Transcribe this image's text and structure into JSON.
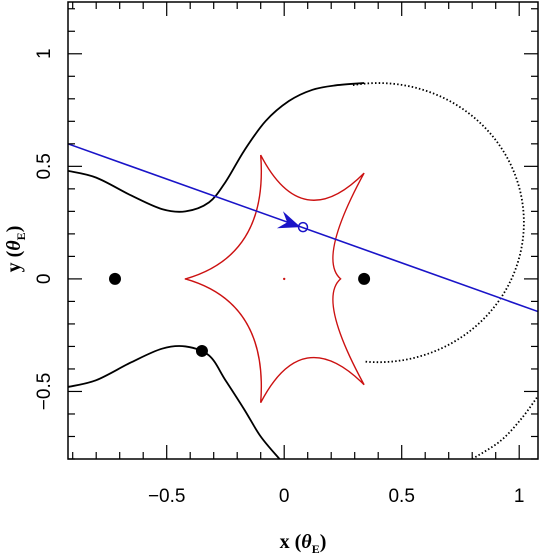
{
  "chart_data": {
    "type": "line",
    "xlabel": {
      "main": "x (",
      "theta": "θ",
      "sub": "E",
      "close": ")"
    },
    "ylabel": {
      "main": "y (",
      "theta": "θ",
      "sub": "E",
      "close": ")"
    },
    "xlim": [
      -0.92,
      1.08
    ],
    "ylim": [
      -0.8,
      1.23
    ],
    "xticks_major": [
      -0.5,
      0,
      0.5,
      1
    ],
    "xtick_labels": [
      "−0.5",
      "0",
      "0.5",
      "1"
    ],
    "yticks_major": [
      -0.5,
      0,
      0.5,
      1
    ],
    "ytick_labels": [
      "−0.5",
      "0",
      "0.5",
      "1"
    ],
    "minor_tick_step": 0.1,
    "colors": {
      "caustic": "#cc1111",
      "trajectory": "#1a14c8",
      "critical_curve": "#000000",
      "lens": "#000000"
    },
    "lens_masses": [
      {
        "x": -0.72,
        "y": 0.0
      },
      {
        "x": 0.34,
        "y": 0.0
      },
      {
        "x": -0.35,
        "y": -0.32
      }
    ],
    "caustic": {
      "cusps": [
        {
          "x": -0.42,
          "y": 0.0
        },
        {
          "x": -0.1,
          "y": 0.55
        },
        {
          "x": 0.34,
          "y": 0.47
        },
        {
          "x": 0.24,
          "y": 0.0
        },
        {
          "x": 0.34,
          "y": -0.47
        },
        {
          "x": -0.1,
          "y": -0.55
        }
      ],
      "center_dot": {
        "x": 0.0,
        "y": 0.0
      }
    },
    "critical_curve_upper": [
      {
        "x": -0.92,
        "y": 0.48
      },
      {
        "x": -0.8,
        "y": 0.45
      },
      {
        "x": -0.65,
        "y": 0.37
      },
      {
        "x": -0.52,
        "y": 0.31
      },
      {
        "x": -0.42,
        "y": 0.3
      },
      {
        "x": -0.32,
        "y": 0.34
      },
      {
        "x": -0.25,
        "y": 0.43
      },
      {
        "x": -0.17,
        "y": 0.57
      },
      {
        "x": -0.08,
        "y": 0.7
      },
      {
        "x": 0.02,
        "y": 0.79
      },
      {
        "x": 0.12,
        "y": 0.84
      },
      {
        "x": 0.22,
        "y": 0.86
      },
      {
        "x": 0.34,
        "y": 0.87
      }
    ],
    "critical_curve_lower": [
      {
        "x": -0.92,
        "y": -0.48
      },
      {
        "x": -0.8,
        "y": -0.45
      },
      {
        "x": -0.65,
        "y": -0.37
      },
      {
        "x": -0.52,
        "y": -0.31
      },
      {
        "x": -0.42,
        "y": -0.3
      },
      {
        "x": -0.32,
        "y": -0.34
      },
      {
        "x": -0.25,
        "y": -0.45
      },
      {
        "x": -0.17,
        "y": -0.58
      },
      {
        "x": -0.1,
        "y": -0.7
      },
      {
        "x": -0.02,
        "y": -0.8
      }
    ],
    "critical_curve_circle": {
      "cx": 0.4,
      "cy": 0.25,
      "r": 0.62,
      "from_deg": 100,
      "to_deg": 0
    },
    "critical_curve_lower_right": [
      {
        "x": 0.8,
        "y": -0.8
      },
      {
        "x": 0.92,
        "y": -0.72
      },
      {
        "x": 1.01,
        "y": -0.62
      },
      {
        "x": 1.08,
        "y": -0.52
      }
    ],
    "trajectory": {
      "start": {
        "x": -0.92,
        "y": 0.6
      },
      "end": {
        "x": 1.08,
        "y": -0.145
      },
      "source_position": {
        "x": 0.08,
        "y": 0.23
      },
      "arrow_tip": {
        "x": 0.07,
        "y": 0.23
      }
    }
  }
}
